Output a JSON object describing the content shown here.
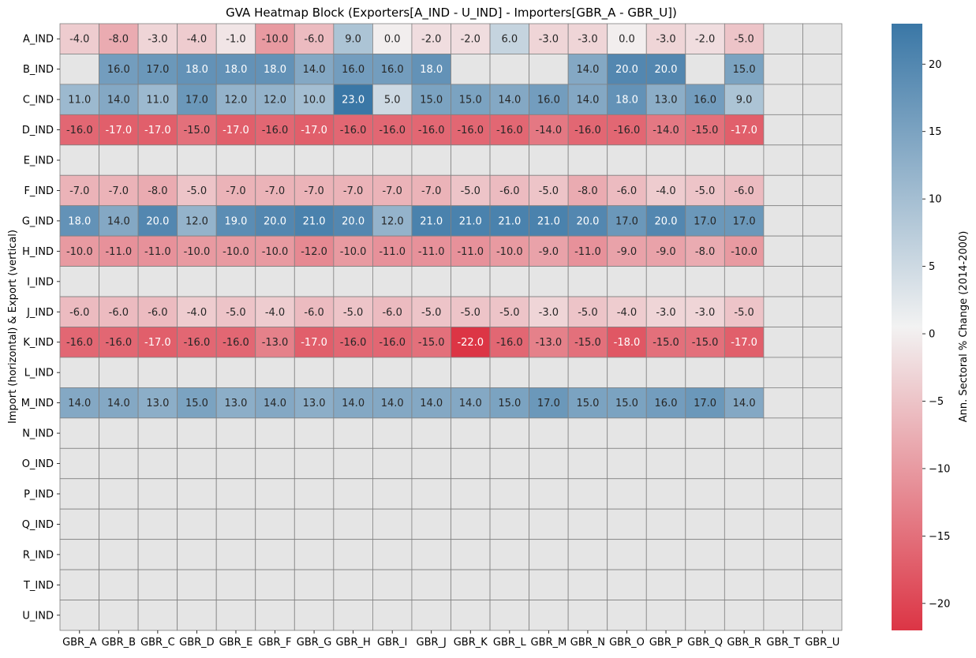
{
  "chart_data": {
    "type": "heatmap",
    "title": "GVA Heatmap Block (Exporters[A_IND - U_IND] - Importers[GBR_A - GBR_U])",
    "ylabel": "Import (horizontal) & Export (vertical)",
    "colorbar_label": "Ann. Sectoral % Change (2014-2000)",
    "x_categories": [
      "GBR_A",
      "GBR_B",
      "GBR_C",
      "GBR_D",
      "GBR_E",
      "GBR_F",
      "GBR_G",
      "GBR_H",
      "GBR_I",
      "GBR_J",
      "GBR_K",
      "GBR_L",
      "GBR_M",
      "GBR_N",
      "GBR_O",
      "GBR_P",
      "GBR_Q",
      "GBR_R",
      "GBR_T",
      "GBR_U"
    ],
    "y_categories": [
      "A_IND",
      "B_IND",
      "C_IND",
      "D_IND",
      "E_IND",
      "F_IND",
      "G_IND",
      "H_IND",
      "I_IND",
      "J_IND",
      "K_IND",
      "L_IND",
      "M_IND",
      "N_IND",
      "O_IND",
      "P_IND",
      "Q_IND",
      "R_IND",
      "T_IND",
      "U_IND"
    ],
    "values": [
      [
        -4.0,
        -8.0,
        -3.0,
        -4.0,
        -1.0,
        -10.0,
        -6.0,
        9.0,
        0.0,
        -2.0,
        -2.0,
        6.0,
        -3.0,
        -3.0,
        0.0,
        -3.0,
        -2.0,
        -5.0,
        null,
        null
      ],
      [
        null,
        16.0,
        17.0,
        18.0,
        18.0,
        18.0,
        14.0,
        16.0,
        16.0,
        18.0,
        null,
        null,
        null,
        14.0,
        20.0,
        20.0,
        null,
        15.0,
        null,
        null
      ],
      [
        11.0,
        14.0,
        11.0,
        17.0,
        12.0,
        12.0,
        10.0,
        23.0,
        5.0,
        15.0,
        15.0,
        14.0,
        16.0,
        14.0,
        18.0,
        13.0,
        16.0,
        9.0,
        null,
        null
      ],
      [
        -16.0,
        -17.0,
        -17.0,
        -15.0,
        -17.0,
        -16.0,
        -17.0,
        -16.0,
        -16.0,
        -16.0,
        -16.0,
        -16.0,
        -14.0,
        -16.0,
        -16.0,
        -14.0,
        -15.0,
        -17.0,
        null,
        null
      ],
      [
        null,
        null,
        null,
        null,
        null,
        null,
        null,
        null,
        null,
        null,
        null,
        null,
        null,
        null,
        null,
        null,
        null,
        null,
        null,
        null
      ],
      [
        -7.0,
        -7.0,
        -8.0,
        -5.0,
        -7.0,
        -7.0,
        -7.0,
        -7.0,
        -7.0,
        -7.0,
        -5.0,
        -6.0,
        -5.0,
        -8.0,
        -6.0,
        -4.0,
        -5.0,
        -6.0,
        null,
        null
      ],
      [
        18.0,
        14.0,
        20.0,
        12.0,
        19.0,
        20.0,
        21.0,
        20.0,
        12.0,
        21.0,
        21.0,
        21.0,
        21.0,
        20.0,
        17.0,
        20.0,
        17.0,
        17.0,
        null,
        null
      ],
      [
        -10.0,
        -11.0,
        -11.0,
        -10.0,
        -10.0,
        -10.0,
        -12.0,
        -10.0,
        -11.0,
        -11.0,
        -11.0,
        -10.0,
        -9.0,
        -11.0,
        -9.0,
        -9.0,
        -8.0,
        -10.0,
        null,
        null
      ],
      [
        null,
        null,
        null,
        null,
        null,
        null,
        null,
        null,
        null,
        null,
        null,
        null,
        null,
        null,
        null,
        null,
        null,
        null,
        null,
        null
      ],
      [
        -6.0,
        -6.0,
        -6.0,
        -4.0,
        -5.0,
        -4.0,
        -6.0,
        -5.0,
        -6.0,
        -5.0,
        -5.0,
        -5.0,
        -3.0,
        -5.0,
        -4.0,
        -3.0,
        -3.0,
        -5.0,
        null,
        null
      ],
      [
        -16.0,
        -16.0,
        -17.0,
        -16.0,
        -16.0,
        -13.0,
        -17.0,
        -16.0,
        -16.0,
        -15.0,
        -22.0,
        -16.0,
        -13.0,
        -15.0,
        -18.0,
        -15.0,
        -15.0,
        -17.0,
        null,
        null
      ],
      [
        null,
        null,
        null,
        null,
        null,
        null,
        null,
        null,
        null,
        null,
        null,
        null,
        null,
        null,
        null,
        null,
        null,
        null,
        null,
        null
      ],
      [
        14.0,
        14.0,
        13.0,
        15.0,
        13.0,
        14.0,
        13.0,
        14.0,
        14.0,
        14.0,
        14.0,
        15.0,
        17.0,
        15.0,
        15.0,
        16.0,
        17.0,
        14.0,
        null,
        null
      ],
      [
        null,
        null,
        null,
        null,
        null,
        null,
        null,
        null,
        null,
        null,
        null,
        null,
        null,
        null,
        null,
        null,
        null,
        null,
        null,
        null
      ],
      [
        null,
        null,
        null,
        null,
        null,
        null,
        null,
        null,
        null,
        null,
        null,
        null,
        null,
        null,
        null,
        null,
        null,
        null,
        null,
        null
      ],
      [
        null,
        null,
        null,
        null,
        null,
        null,
        null,
        null,
        null,
        null,
        null,
        null,
        null,
        null,
        null,
        null,
        null,
        null,
        null,
        null
      ],
      [
        null,
        null,
        null,
        null,
        null,
        null,
        null,
        null,
        null,
        null,
        null,
        null,
        null,
        null,
        null,
        null,
        null,
        null,
        null,
        null
      ],
      [
        null,
        null,
        null,
        null,
        null,
        null,
        null,
        null,
        null,
        null,
        null,
        null,
        null,
        null,
        null,
        null,
        null,
        null,
        null,
        null
      ],
      [
        null,
        null,
        null,
        null,
        null,
        null,
        null,
        null,
        null,
        null,
        null,
        null,
        null,
        null,
        null,
        null,
        null,
        null,
        null,
        null
      ],
      [
        null,
        null,
        null,
        null,
        null,
        null,
        null,
        null,
        null,
        null,
        null,
        null,
        null,
        null,
        null,
        null,
        null,
        null,
        null,
        null
      ]
    ],
    "colorbar_range": [
      -22,
      23
    ],
    "colorbar_ticks": [
      -20,
      -15,
      -10,
      -5,
      0,
      5,
      10,
      15,
      20
    ],
    "colors": {
      "negative": "#dc3545",
      "center": "#f2f2f2",
      "positive": "#3a77a6",
      "missing": "#e5e5e5",
      "grid": "#808080"
    }
  }
}
